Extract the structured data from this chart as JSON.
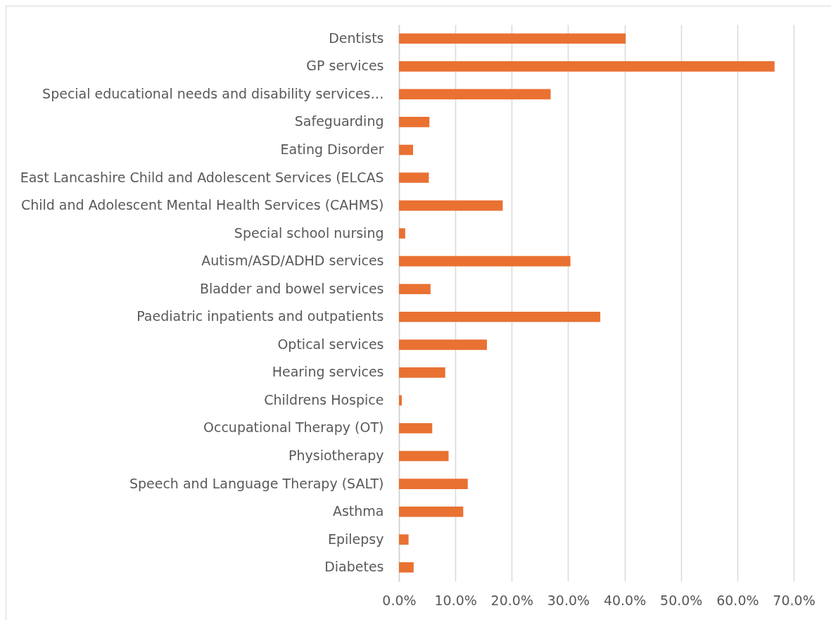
{
  "chart_data": {
    "type": "bar",
    "orientation": "horizontal",
    "categories": [
      "Dentists",
      "GP services",
      "Special educational needs and disability services…",
      "Safeguarding",
      "Eating Disorder",
      "East Lancashire Child and Adolescent Services (ELCAS",
      "Child and Adolescent Mental Health Services (CAHMS)",
      "Special school nursing",
      "Autism/ASD/ADHD services",
      "Bladder and bowel services",
      "Paediatric inpatients and outpatients",
      "Optical services",
      "Hearing services",
      "Childrens Hospice",
      "Occupational Therapy (OT)",
      "Physiotherapy",
      "Speech and Language Therapy (SALT)",
      "Asthma",
      "Epilepsy",
      "Diabetes"
    ],
    "values": [
      40.2,
      66.6,
      26.9,
      5.4,
      2.5,
      5.3,
      18.4,
      1.1,
      30.4,
      5.6,
      35.7,
      15.6,
      8.2,
      0.5,
      5.9,
      8.8,
      12.2,
      11.4,
      1.7,
      2.6
    ],
    "color": "#e97132",
    "xlim": [
      0,
      70
    ],
    "xticks": [
      {
        "value": 0,
        "label": "0.0%"
      },
      {
        "value": 10,
        "label": "10.0%"
      },
      {
        "value": 20,
        "label": "20.0%"
      },
      {
        "value": 30,
        "label": "30.0%"
      },
      {
        "value": 40,
        "label": "40.0%"
      },
      {
        "value": 50,
        "label": "50.0%"
      },
      {
        "value": 60,
        "label": "60.0%"
      },
      {
        "value": 70,
        "label": "70.0%"
      }
    ],
    "grid": "x"
  }
}
